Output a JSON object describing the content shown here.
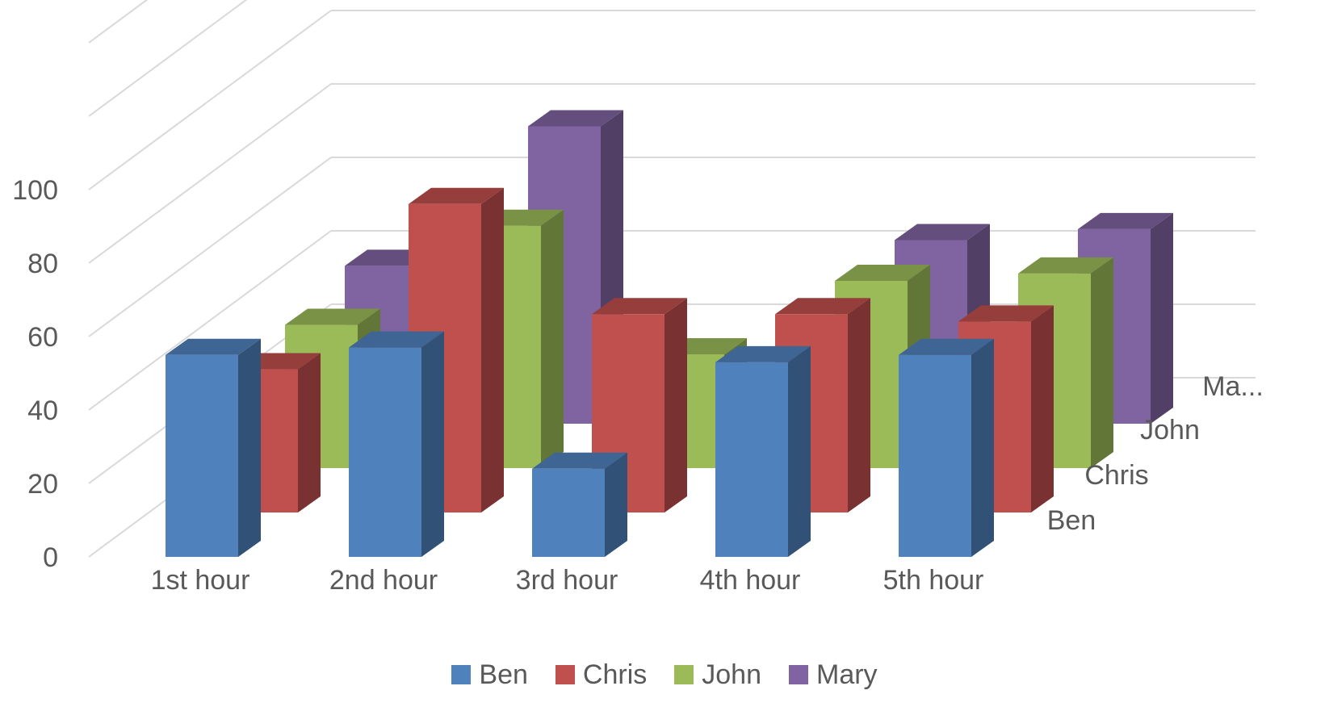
{
  "chart_data": {
    "type": "bar",
    "variant": "3d-column",
    "categories": [
      "1st hour",
      "2nd hour",
      "3rd hour",
      "4th hour",
      "5th hour"
    ],
    "depth_labels": [
      "Ben",
      "Chris",
      "John",
      "Ma..."
    ],
    "series": [
      {
        "name": "Ben",
        "color": "#4F81BD",
        "values": [
          55,
          57,
          24,
          53,
          55
        ]
      },
      {
        "name": "Chris",
        "color": "#C0504D",
        "values": [
          39,
          84,
          54,
          54,
          52
        ]
      },
      {
        "name": "John",
        "color": "#9BBB59",
        "values": [
          39,
          66,
          31,
          51,
          53
        ]
      },
      {
        "name": "Mary",
        "color": "#8064A2",
        "values": [
          43,
          81,
          2,
          50,
          53
        ]
      }
    ],
    "ylim": [
      0,
      100
    ],
    "y_ticks": [
      "0",
      "20",
      "40",
      "60",
      "80",
      "100"
    ],
    "grid": true,
    "legend_position": "bottom",
    "title": "",
    "xlabel": "",
    "ylabel": ""
  }
}
